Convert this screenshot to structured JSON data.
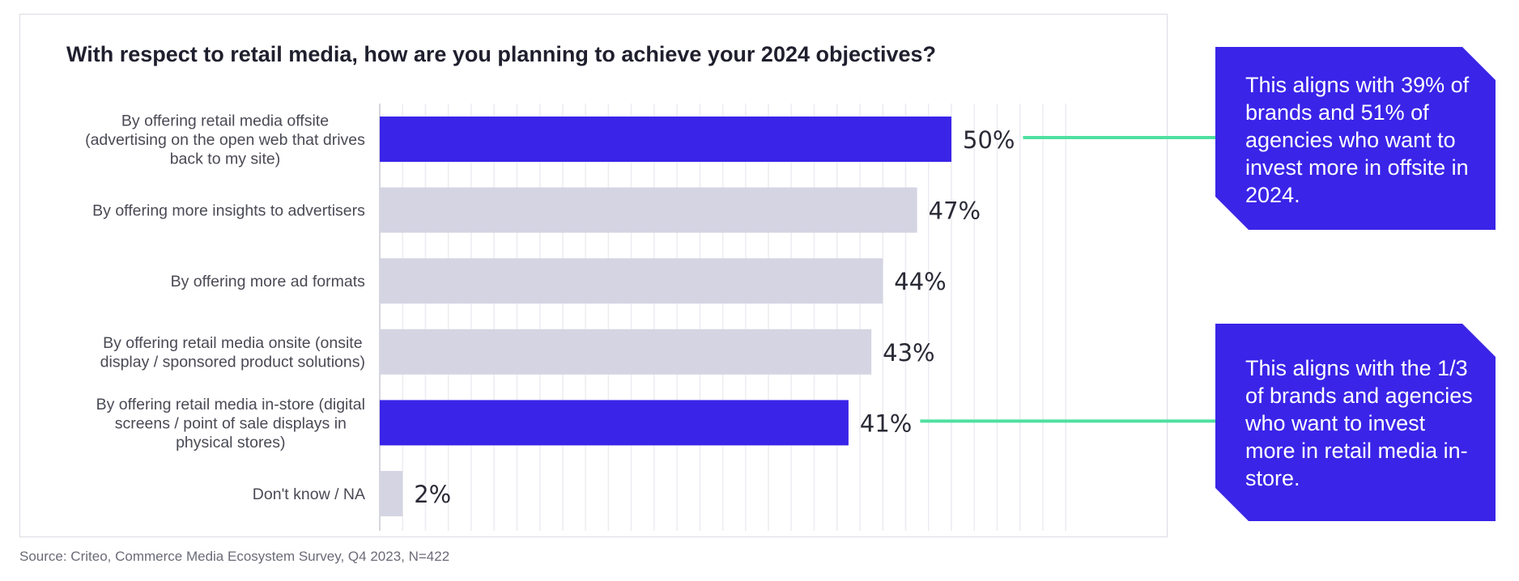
{
  "chart_data": {
    "type": "bar",
    "orientation": "horizontal",
    "title": "With respect to retail media, how are you planning to achieve your 2024 objectives?",
    "categories": [
      [
        "By offering retail media offsite",
        "(advertising on the open web that drives",
        "back to my site)"
      ],
      [
        "By offering more insights to advertisers"
      ],
      [
        "By offering more ad formats"
      ],
      [
        "By offering retail media onsite (onsite",
        "display / sponsored product solutions)"
      ],
      [
        "By offering retail media in-store (digital",
        "screens / point of sale displays in",
        "physical stores)"
      ],
      [
        "Don't know / NA"
      ]
    ],
    "values": [
      50,
      47,
      44,
      43,
      41,
      2
    ],
    "value_labels": [
      "50%",
      "47%",
      "44%",
      "43%",
      "41%",
      "2%"
    ],
    "highlighted": [
      true,
      false,
      false,
      false,
      true,
      false
    ],
    "xlim": [
      0,
      60
    ],
    "grid": true,
    "colors": {
      "highlight": "#3a24e8",
      "default": "#d4d4e3",
      "connector": "#4fe0a0"
    }
  },
  "callouts": [
    {
      "text": "This aligns with 39% of brands and 51% of agencies who want to invest more in offsite in 2024.",
      "connects_to_bar": 0
    },
    {
      "text": "This aligns with the 1/3 of brands and agencies who want to invest more in retail media in-store.",
      "connects_to_bar": 4
    }
  ],
  "source": "Source: Criteo, Commerce Media Ecosystem Survey, Q4 2023, N=422"
}
